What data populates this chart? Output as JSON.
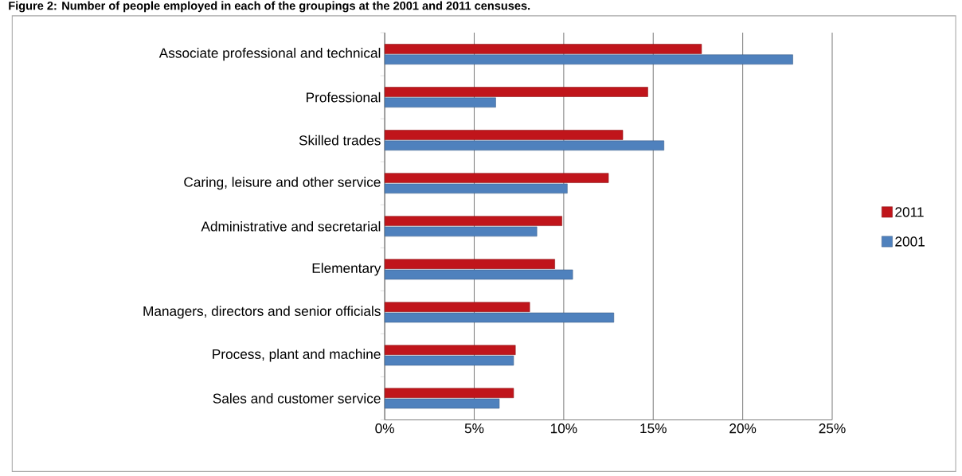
{
  "chart_data": {
    "type": "bar",
    "orientation": "horizontal",
    "title": "Figure 2: Number of people employed in each of the groupings at the 2001 and 2011 censuses.",
    "categories": [
      "Associate professional and technical",
      "Professional",
      "Skilled trades",
      "Caring, leisure and other service",
      "Administrative and secretarial",
      "Elementary",
      "Managers, directors and senior officials",
      "Process, plant and machine",
      "Sales and customer service"
    ],
    "series": [
      {
        "name": "2011",
        "color": "#c0151b",
        "values": [
          17.7,
          14.7,
          13.3,
          12.5,
          9.9,
          9.5,
          8.1,
          7.3,
          7.2
        ]
      },
      {
        "name": "2001",
        "color": "#4f81bd",
        "values": [
          22.8,
          6.2,
          15.6,
          10.2,
          8.5,
          10.5,
          12.8,
          7.2,
          6.4
        ]
      }
    ],
    "xlim": [
      0,
      25
    ],
    "xticks": [
      {
        "value": 0,
        "label": "0%"
      },
      {
        "value": 5,
        "label": "5%"
      },
      {
        "value": 10,
        "label": "10%"
      },
      {
        "value": 15,
        "label": "15%"
      },
      {
        "value": 20,
        "label": "20%"
      },
      {
        "value": 25,
        "label": "25%"
      }
    ],
    "grid": "x",
    "legend": "right"
  }
}
